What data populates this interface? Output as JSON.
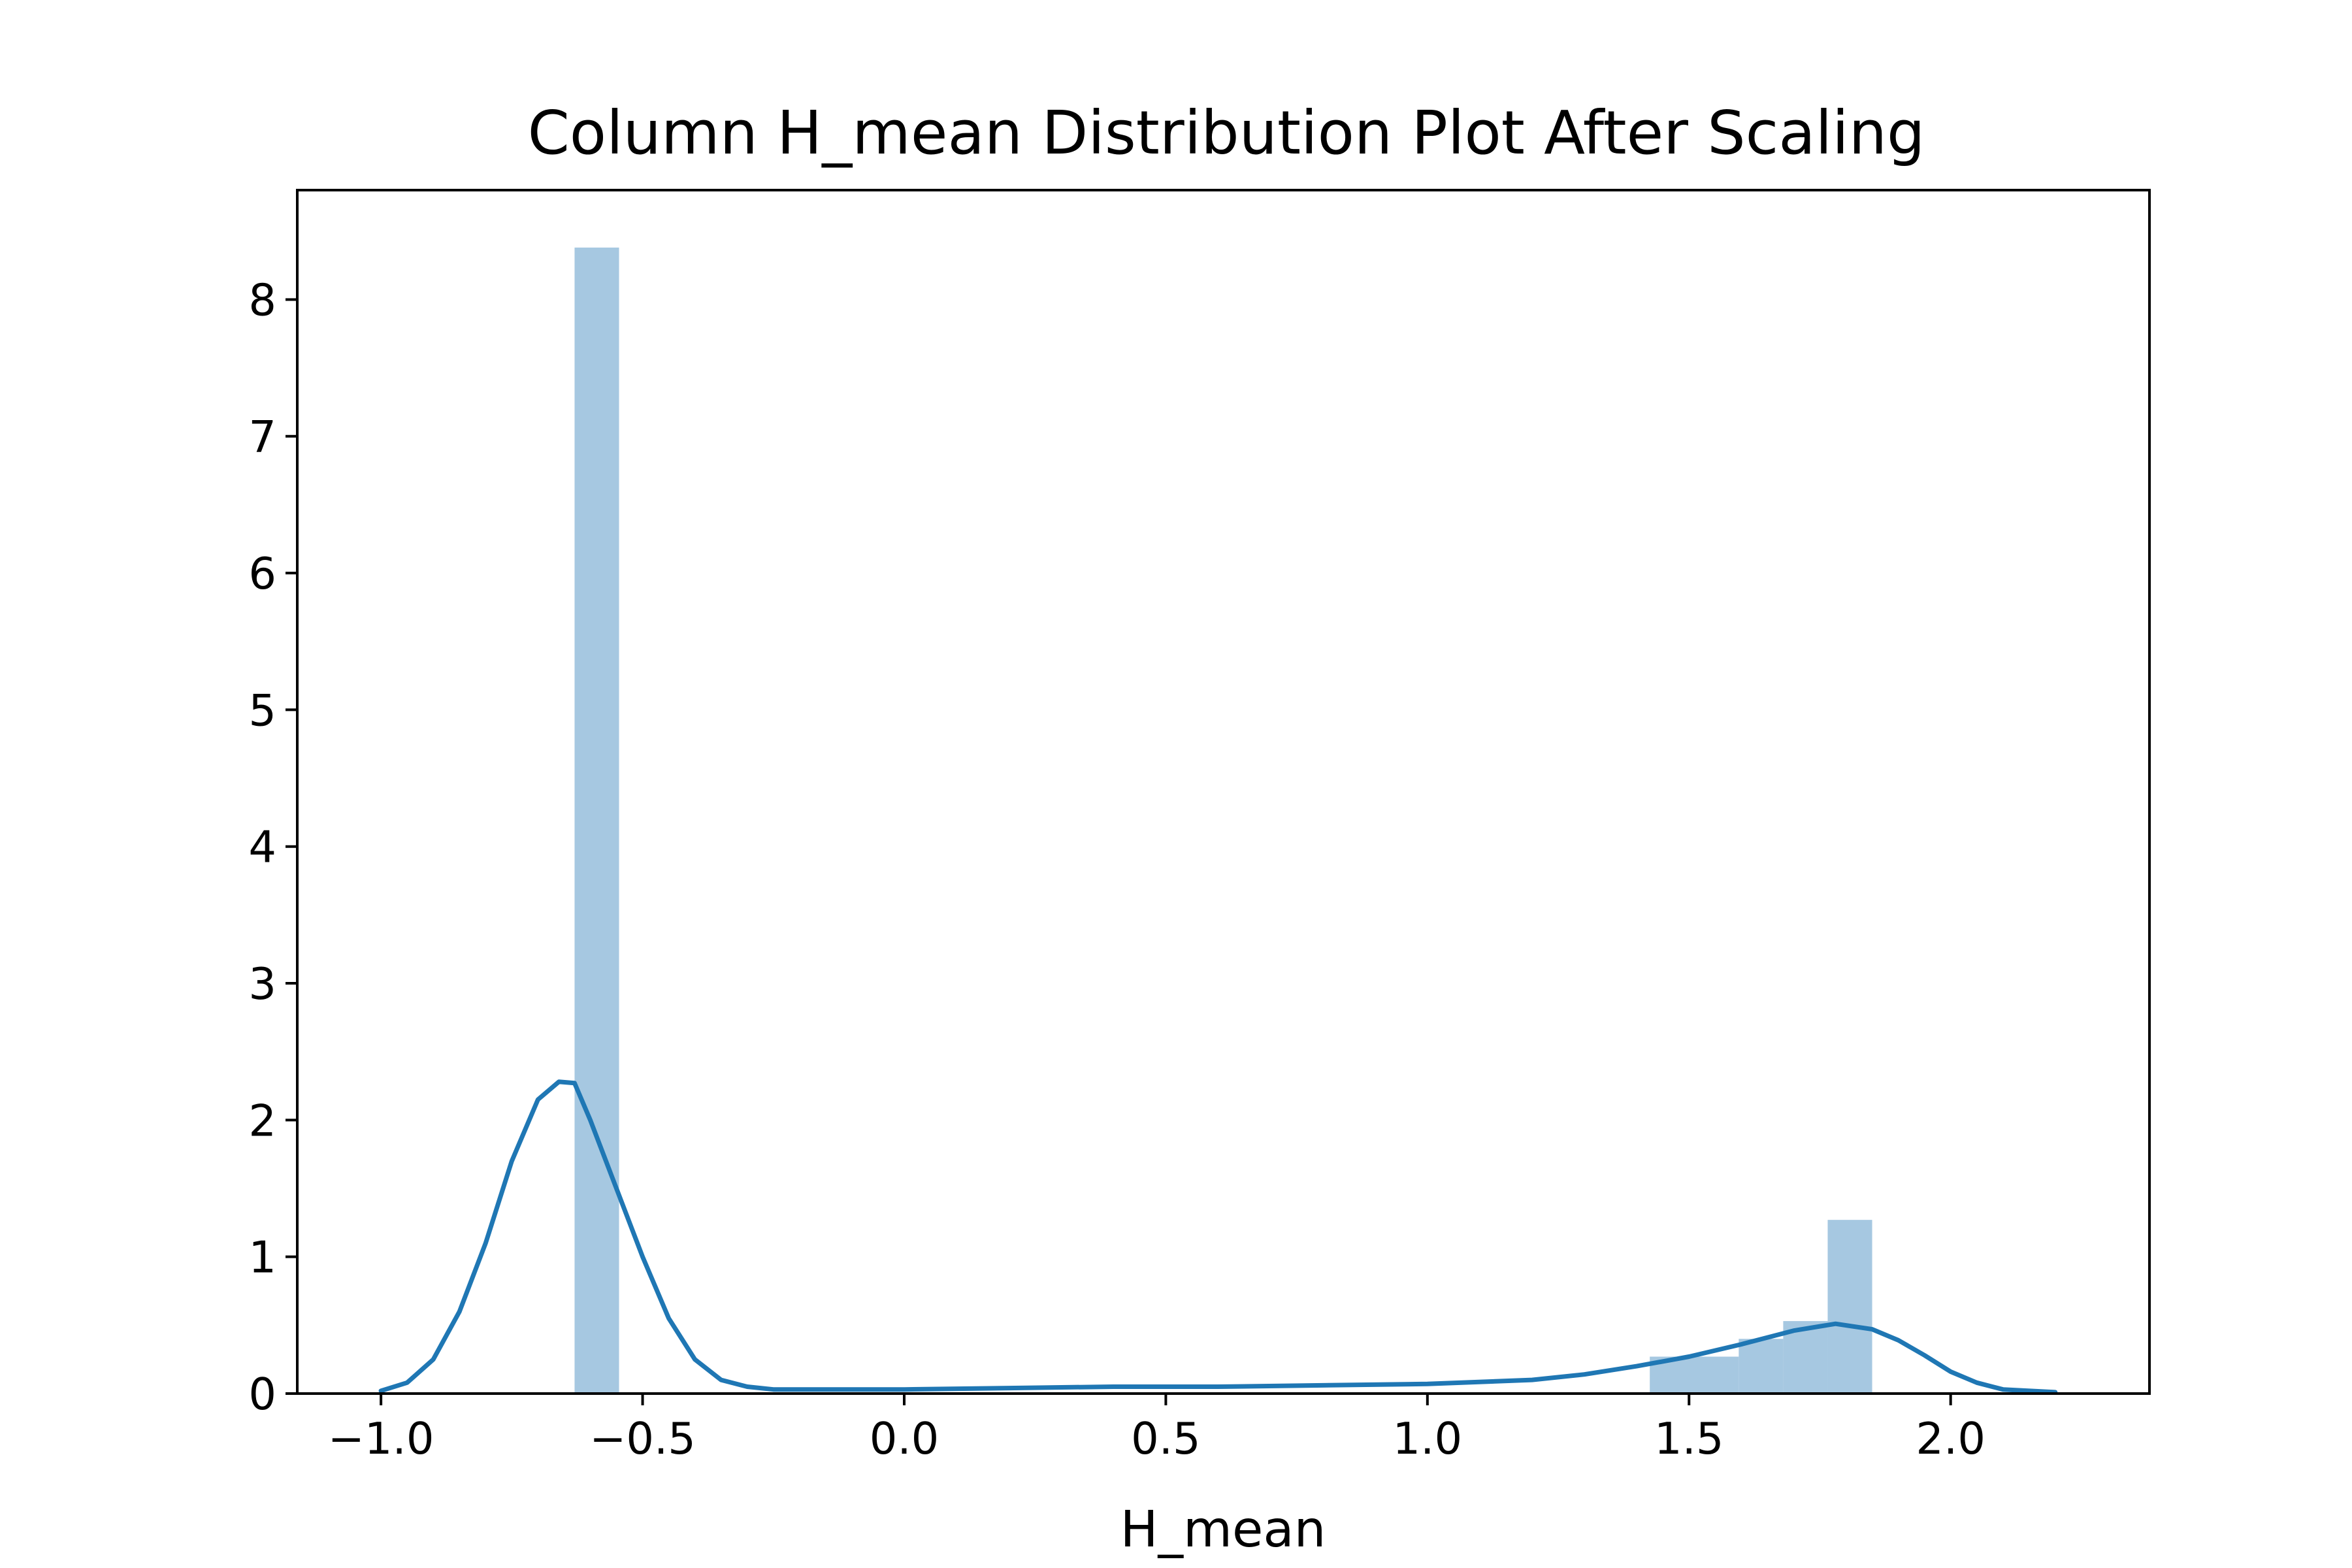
{
  "chart_data": {
    "type": "bar",
    "title": "Column H_mean Distribution Plot After Scaling",
    "xlabel": "H_mean",
    "ylabel": "",
    "xlim": [
      -1.16,
      2.38
    ],
    "ylim": [
      0,
      8.8
    ],
    "xticks": [
      -1.0,
      -0.5,
      0.0,
      0.5,
      1.0,
      1.5,
      2.0
    ],
    "xtick_labels": [
      "−1.0",
      "−0.5",
      "0.0",
      "0.5",
      "1.0",
      "1.5",
      "2.0"
    ],
    "yticks": [
      0,
      1,
      2,
      3,
      4,
      5,
      6,
      7,
      8
    ],
    "ytick_labels": [
      "0",
      "1",
      "2",
      "3",
      "4",
      "5",
      "6",
      "7",
      "8"
    ],
    "grid": false,
    "legend": false,
    "series": [
      {
        "type": "histogram",
        "color": "#a6c8e1",
        "bins": [
          {
            "x0": -0.63,
            "x1": -0.545,
            "value": 8.38
          },
          {
            "x0": 1.425,
            "x1": 1.595,
            "value": 0.27
          },
          {
            "x0": 1.595,
            "x1": 1.68,
            "value": 0.4
          },
          {
            "x0": 1.68,
            "x1": 1.765,
            "value": 0.53
          },
          {
            "x0": 1.765,
            "x1": 1.85,
            "value": 1.27
          }
        ]
      },
      {
        "type": "line",
        "color": "#1f77b4",
        "x": [
          -1.0,
          -0.95,
          -0.9,
          -0.85,
          -0.8,
          -0.75,
          -0.7,
          -0.66,
          -0.63,
          -0.6,
          -0.55,
          -0.5,
          -0.45,
          -0.4,
          -0.35,
          -0.3,
          -0.25,
          -0.2,
          0.0,
          0.2,
          0.4,
          0.6,
          0.8,
          1.0,
          1.2,
          1.3,
          1.4,
          1.5,
          1.6,
          1.7,
          1.78,
          1.85,
          1.9,
          1.95,
          2.0,
          2.05,
          2.1,
          2.2
        ],
        "y": [
          0.02,
          0.08,
          0.25,
          0.6,
          1.1,
          1.7,
          2.15,
          2.28,
          2.27,
          2.0,
          1.5,
          1.0,
          0.55,
          0.25,
          0.1,
          0.05,
          0.03,
          0.03,
          0.03,
          0.04,
          0.05,
          0.05,
          0.06,
          0.07,
          0.1,
          0.14,
          0.2,
          0.27,
          0.36,
          0.46,
          0.51,
          0.47,
          0.39,
          0.28,
          0.16,
          0.08,
          0.03,
          0.01
        ]
      }
    ]
  }
}
